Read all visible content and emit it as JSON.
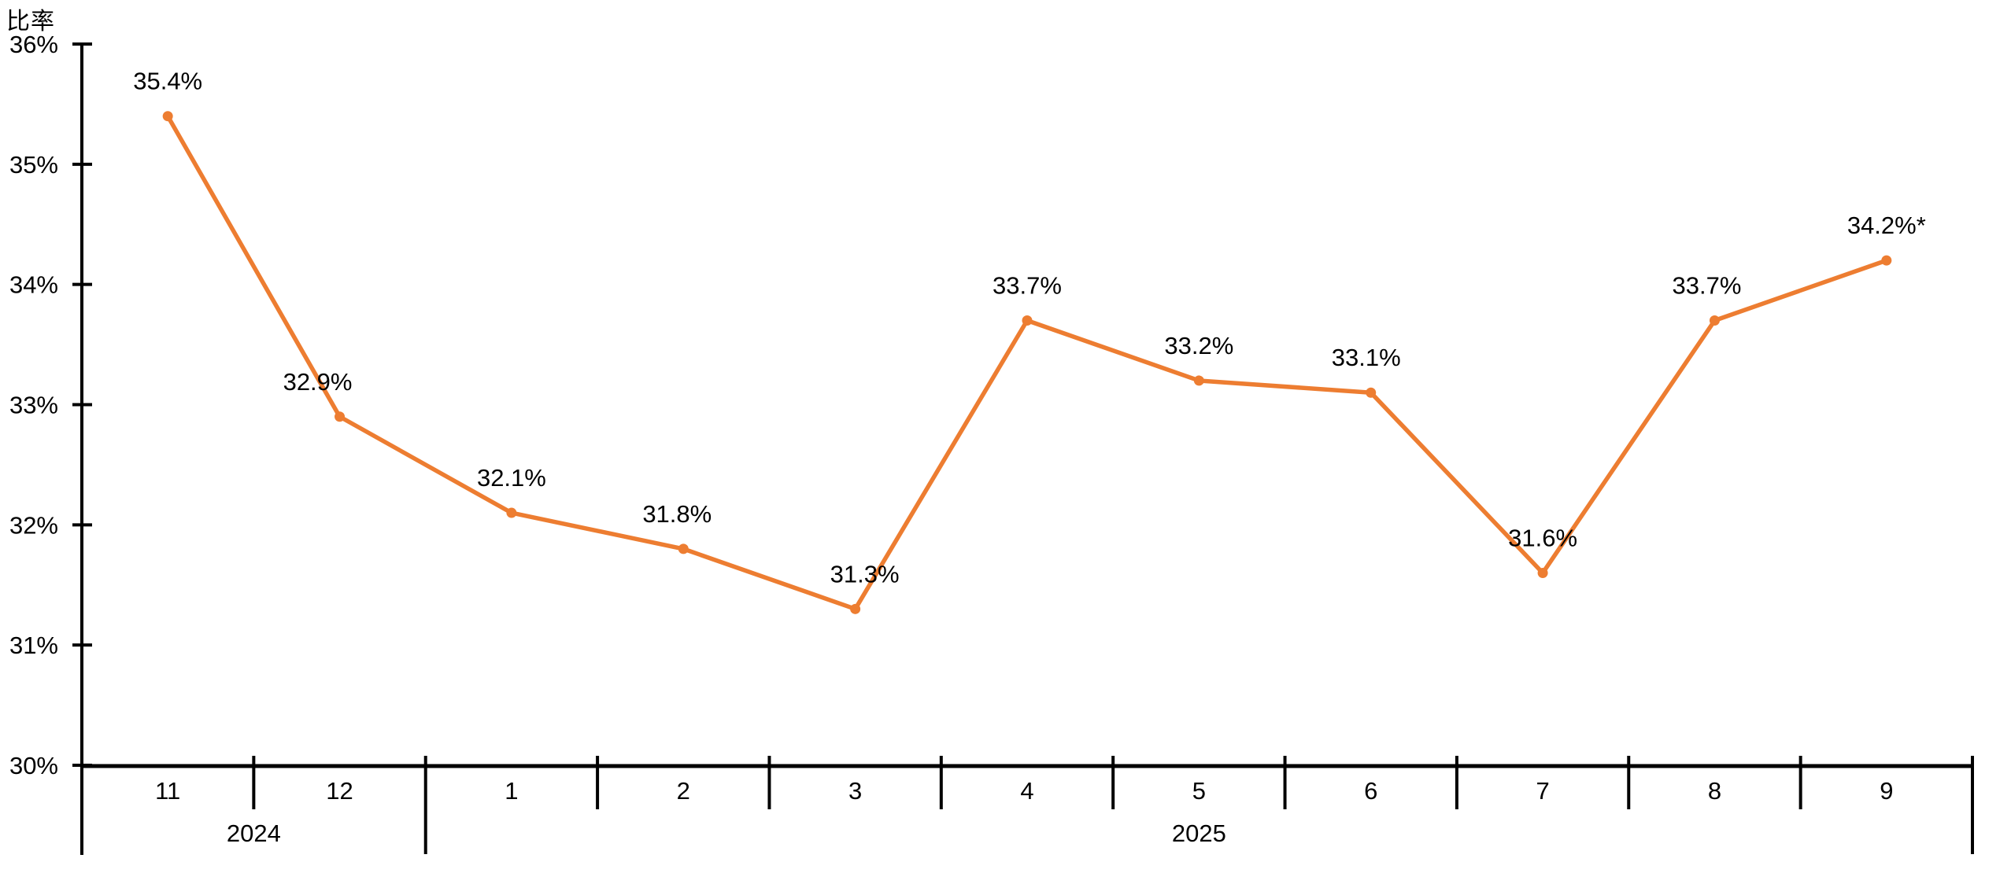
{
  "chart_data": {
    "type": "line",
    "title": "",
    "xlabel": "",
    "ylabel": "比率",
    "background_color": "#FFFFFF",
    "series_color": "#ED7D31",
    "axis_color": "#000000",
    "text_color": "#000000",
    "grid": false,
    "legend_position": "none",
    "ylim": [
      30,
      36
    ],
    "y_ticks": [
      {
        "value": 36,
        "label": "36%"
      },
      {
        "value": 35,
        "label": "35%"
      },
      {
        "value": 34,
        "label": "34%"
      },
      {
        "value": 33,
        "label": "33%"
      },
      {
        "value": 32,
        "label": "32%"
      },
      {
        "value": 31,
        "label": "31%"
      },
      {
        "value": 30,
        "label": "30%"
      }
    ],
    "categories": [
      "11",
      "12",
      "1",
      "2",
      "3",
      "4",
      "5",
      "6",
      "7",
      "8",
      "9"
    ],
    "year_groups": [
      {
        "label": "2024",
        "month_count": 2
      },
      {
        "label": "2025",
        "month_count": 9
      }
    ],
    "series": [
      {
        "name": "比率",
        "values": [
          35.4,
          32.9,
          32.1,
          31.8,
          31.3,
          33.7,
          33.2,
          33.1,
          31.6,
          33.7,
          34.2
        ],
        "point_labels": [
          "35.4%",
          "32.9%",
          "32.1%",
          "31.8%",
          "31.3%",
          "33.7%",
          "33.2%",
          "33.1%",
          "31.6%",
          "33.7%",
          "34.2%*"
        ],
        "label_dx": [
          0,
          -28,
          0,
          -8,
          12,
          0,
          0,
          -6,
          0,
          -10,
          0
        ]
      }
    ]
  }
}
